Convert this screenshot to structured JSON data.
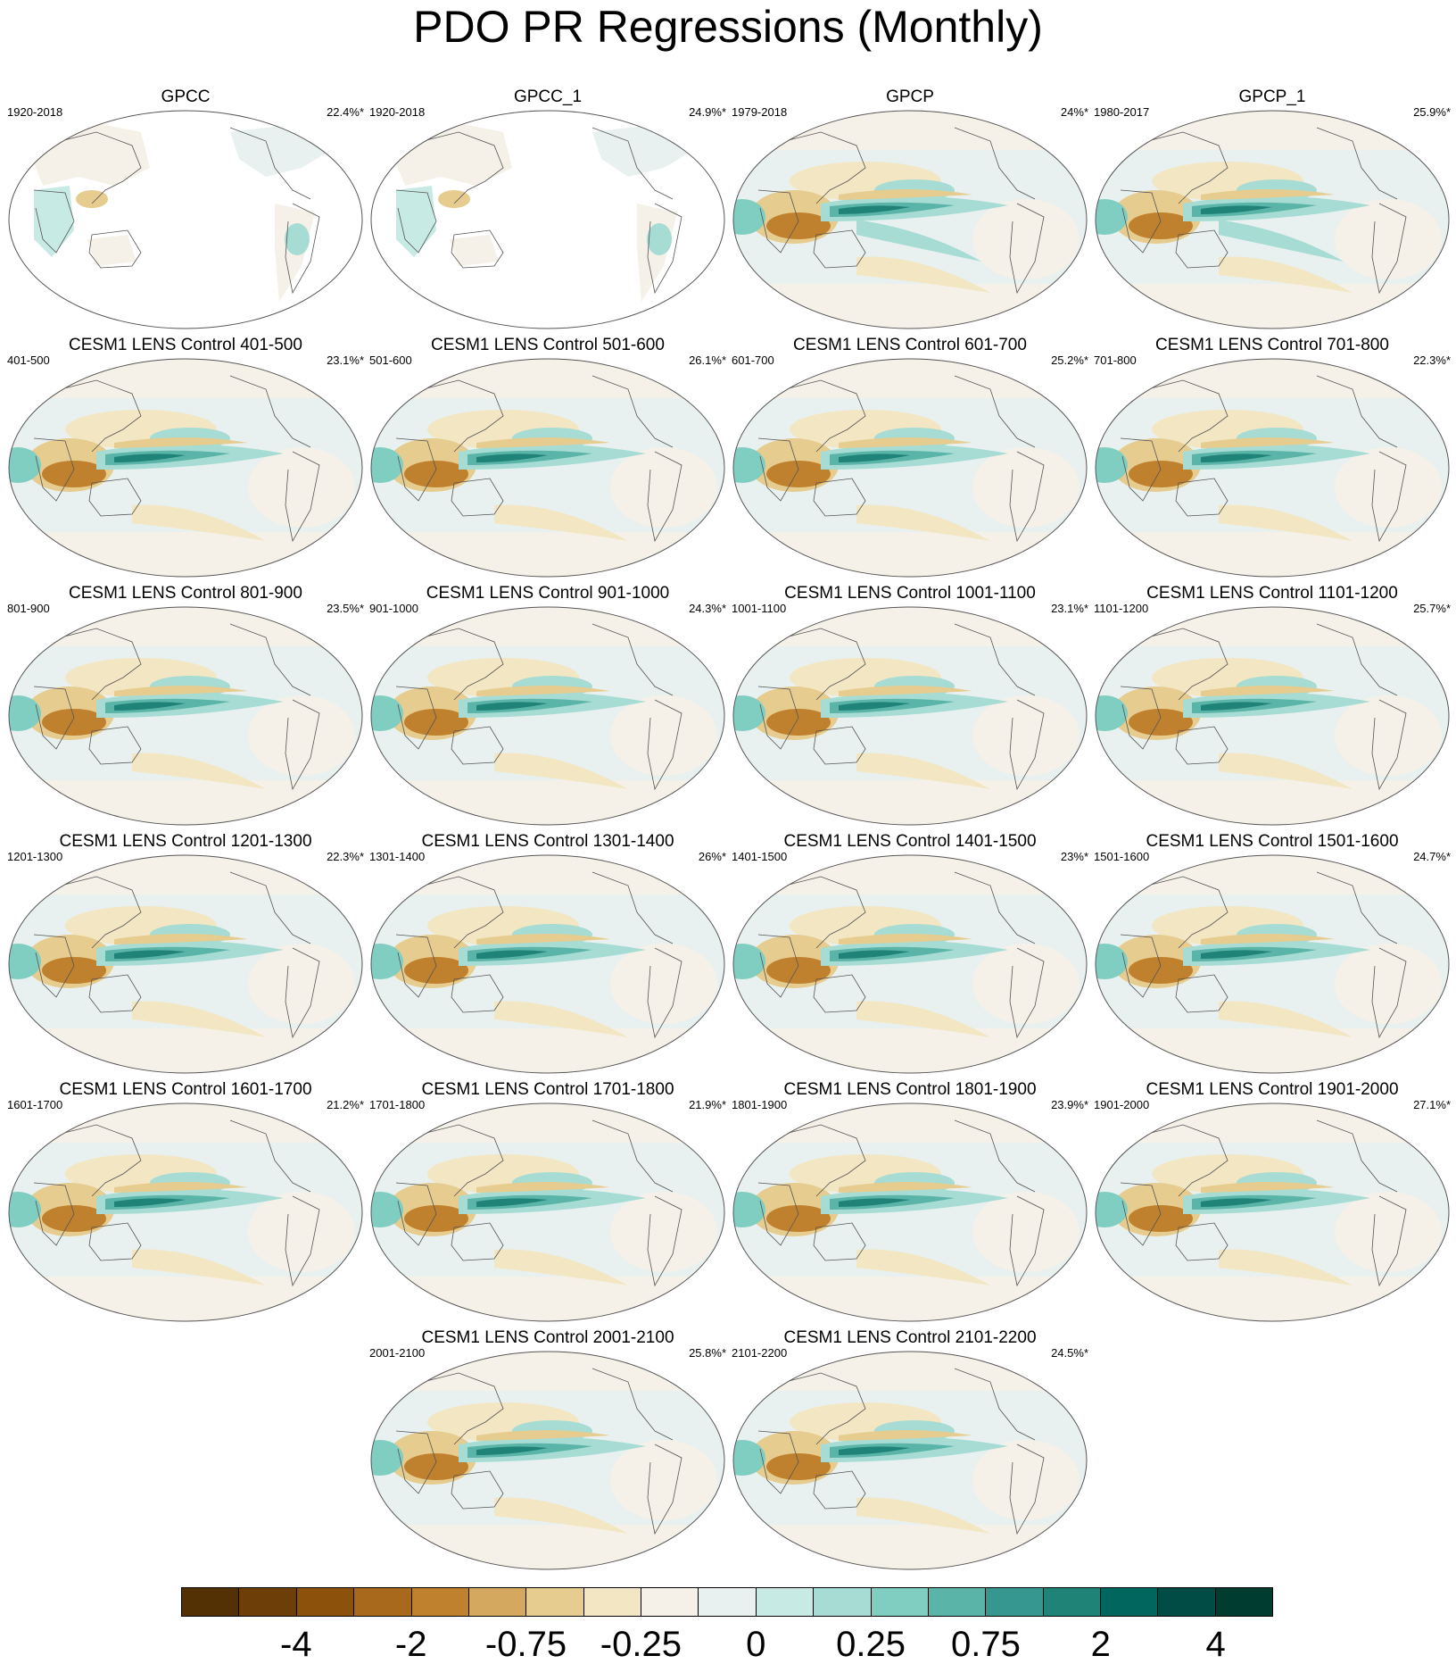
{
  "title": "PDO PR Regressions (Monthly)",
  "panels": [
    {
      "title": "GPCC",
      "period": "1920-2018",
      "variance": "22.4%*",
      "pattern": "gpcc"
    },
    {
      "title": "GPCC_1",
      "period": "1920-2018",
      "variance": "24.9%*",
      "pattern": "gpcc"
    },
    {
      "title": "GPCP",
      "period": "1979-2018",
      "variance": "24%*",
      "pattern": "obs"
    },
    {
      "title": "GPCP_1",
      "period": "1980-2017",
      "variance": "25.9%*",
      "pattern": "obs"
    },
    {
      "title": "CESM1 LENS Control 401-500",
      "period": "401-500",
      "variance": "23.1%*",
      "pattern": "model"
    },
    {
      "title": "CESM1 LENS Control 501-600",
      "period": "501-600",
      "variance": "26.1%*",
      "pattern": "model"
    },
    {
      "title": "CESM1 LENS Control 601-700",
      "period": "601-700",
      "variance": "25.2%*",
      "pattern": "model"
    },
    {
      "title": "CESM1 LENS Control 701-800",
      "period": "701-800",
      "variance": "22.3%*",
      "pattern": "model"
    },
    {
      "title": "CESM1 LENS Control 801-900",
      "period": "801-900",
      "variance": "23.5%*",
      "pattern": "model"
    },
    {
      "title": "CESM1 LENS Control 901-1000",
      "period": "901-1000",
      "variance": "24.3%*",
      "pattern": "model"
    },
    {
      "title": "CESM1 LENS Control 1001-1100",
      "period": "1001-1100",
      "variance": "23.1%*",
      "pattern": "model"
    },
    {
      "title": "CESM1 LENS Control 1101-1200",
      "period": "1101-1200",
      "variance": "25.7%*",
      "pattern": "model"
    },
    {
      "title": "CESM1 LENS Control 1201-1300",
      "period": "1201-1300",
      "variance": "22.3%*",
      "pattern": "model"
    },
    {
      "title": "CESM1 LENS Control 1301-1400",
      "period": "1301-1400",
      "variance": "26%*",
      "pattern": "model"
    },
    {
      "title": "CESM1 LENS Control 1401-1500",
      "period": "1401-1500",
      "variance": "23%*",
      "pattern": "model"
    },
    {
      "title": "CESM1 LENS Control 1501-1600",
      "period": "1501-1600",
      "variance": "24.7%*",
      "pattern": "model"
    },
    {
      "title": "CESM1 LENS Control 1601-1700",
      "period": "1601-1700",
      "variance": "21.2%*",
      "pattern": "model"
    },
    {
      "title": "CESM1 LENS Control 1701-1800",
      "period": "1701-1800",
      "variance": "21.9%*",
      "pattern": "model"
    },
    {
      "title": "CESM1 LENS Control 1801-1900",
      "period": "1801-1900",
      "variance": "23.9%*",
      "pattern": "model"
    },
    {
      "title": "CESM1 LENS Control 1901-2000",
      "period": "1901-2000",
      "variance": "27.1%*",
      "pattern": "model"
    },
    {
      "title": "CESM1 LENS Control 2001-2100",
      "period": "2001-2100",
      "variance": "25.8%*",
      "pattern": "model"
    },
    {
      "title": "CESM1 LENS Control 2101-2200",
      "period": "2101-2200",
      "variance": "24.5%*",
      "pattern": "model"
    }
  ],
  "colorbar": {
    "colors": [
      "#543005",
      "#6e3e08",
      "#8c510a",
      "#a8691d",
      "#bf812d",
      "#d4a85e",
      "#e6cc8f",
      "#f3e6c3",
      "#f5f1e8",
      "#e8f1ef",
      "#c7eae5",
      "#a6dcd3",
      "#80cdc1",
      "#5ab4a7",
      "#35978f",
      "#1f8378",
      "#01665e",
      "#014c44",
      "#003c30"
    ],
    "labels": [
      "-4",
      "-2",
      "-0.75",
      "-0.25",
      "0",
      "0.25",
      "0.75",
      "2",
      "4"
    ]
  }
}
